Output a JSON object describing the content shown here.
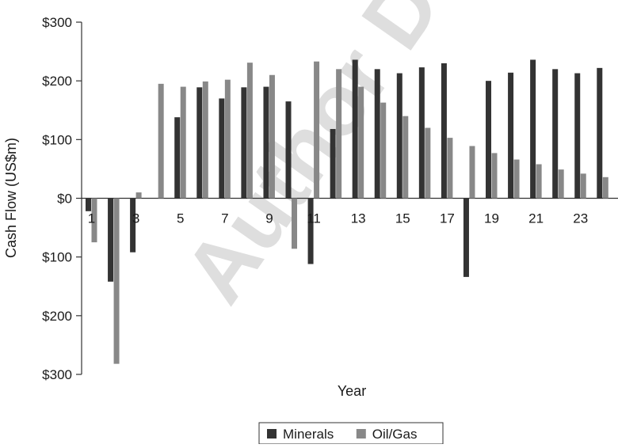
{
  "chart_data": {
    "type": "bar",
    "xlabel": "Year",
    "ylabel": "Cash Flow (US$m)",
    "ylim": [
      -300,
      300
    ],
    "yticks": [
      300,
      200,
      100,
      0,
      -100,
      -200,
      -300
    ],
    "ytick_labels": [
      "$300",
      "$200",
      "$100",
      "$0",
      "$100",
      "$200",
      "$300"
    ],
    "categories": [
      1,
      2,
      3,
      4,
      5,
      6,
      7,
      8,
      9,
      10,
      11,
      12,
      13,
      14,
      15,
      16,
      17,
      18,
      19,
      20,
      21,
      22,
      23,
      24
    ],
    "xtick_labels": [
      "1",
      "",
      "3",
      "",
      "5",
      "",
      "7",
      "",
      "9",
      "",
      "11",
      "",
      "13",
      "",
      "15",
      "",
      "17",
      "",
      "19",
      "",
      "21",
      "",
      "23",
      ""
    ],
    "series": [
      {
        "name": "Minerals",
        "color": "#333333",
        "values": [
          -22,
          -142,
          -92,
          0,
          138,
          189,
          170,
          189,
          190,
          165,
          -112,
          118,
          236,
          220,
          213,
          223,
          230,
          -134,
          200,
          214,
          236,
          220,
          213,
          222
        ]
      },
      {
        "name": "Oil/Gas",
        "color": "#888888",
        "values": [
          -75,
          -282,
          10,
          195,
          190,
          199,
          202,
          231,
          210,
          -86,
          233,
          220,
          190,
          163,
          140,
          120,
          103,
          89,
          77,
          66,
          58,
          49,
          42,
          36
        ]
      }
    ],
    "extra_oilgas_leading": [],
    "legend_position": "bottom",
    "grid": false
  },
  "watermark": "Author Di"
}
